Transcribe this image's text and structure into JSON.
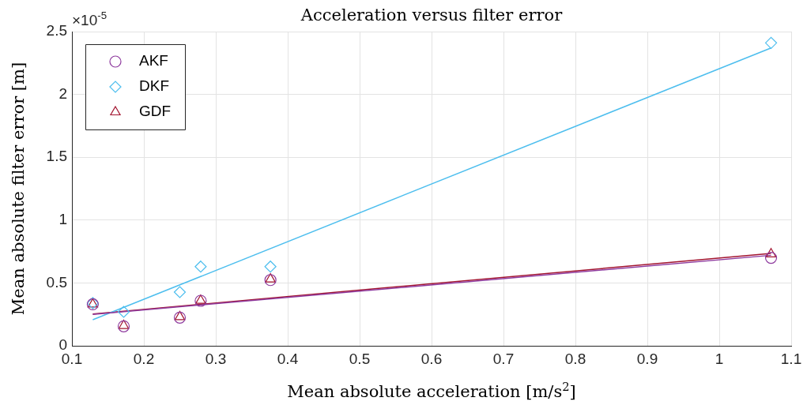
{
  "chart_data": {
    "type": "scatter",
    "title": "Acceleration versus filter error",
    "xlabel": "Mean absolute acceleration [m/s$^{2}$]",
    "ylabel": "Mean absolute filter error [m]",
    "annotations": [
      "×10$^{-5}$"
    ],
    "xlim": [
      0.1,
      1.1
    ],
    "xticks": [
      0.1,
      0.2,
      0.3,
      0.4,
      0.5,
      0.6,
      0.7,
      0.8,
      0.9,
      1,
      1.1
    ],
    "ylim": [
      0,
      2.5
    ],
    "yticks": [
      0,
      0.5,
      1,
      1.5,
      2,
      2.5
    ],
    "grid": true,
    "legend": "top left",
    "series": [
      {
        "name": "AKF",
        "marker": "circle",
        "color": "#8e3a9e",
        "x": [
          0.129,
          0.172,
          0.25,
          0.279,
          0.376,
          1.072
        ],
        "values": [
          0.33,
          0.155,
          0.224,
          0.358,
          0.523,
          0.7
        ]
      },
      {
        "name": "DKF",
        "marker": "diamond",
        "color": "#4dbeee",
        "x": [
          0.129,
          0.172,
          0.25,
          0.279,
          0.376,
          1.072
        ],
        "values": [
          0.34,
          0.27,
          0.427,
          0.63,
          0.63,
          2.41
        ]
      },
      {
        "name": "GDF",
        "marker": "triangle",
        "color": "#a2142f",
        "x": [
          0.129,
          0.172,
          0.25,
          0.279,
          0.376,
          1.072
        ],
        "values": [
          0.33,
          0.16,
          0.23,
          0.36,
          0.53,
          0.73
        ]
      },
      {
        "type": "line",
        "color": "#8e3a9e",
        "x": [
          0.129,
          1.072
        ],
        "values": [
          0.25,
          0.72
        ]
      },
      {
        "type": "line",
        "color": "#4dbeee",
        "x": [
          0.129,
          1.072
        ],
        "values": [
          0.207,
          2.37
        ]
      },
      {
        "type": "line",
        "color": "#a2142f",
        "x": [
          0.129,
          1.072
        ],
        "values": [
          0.253,
          0.735
        ]
      }
    ]
  }
}
